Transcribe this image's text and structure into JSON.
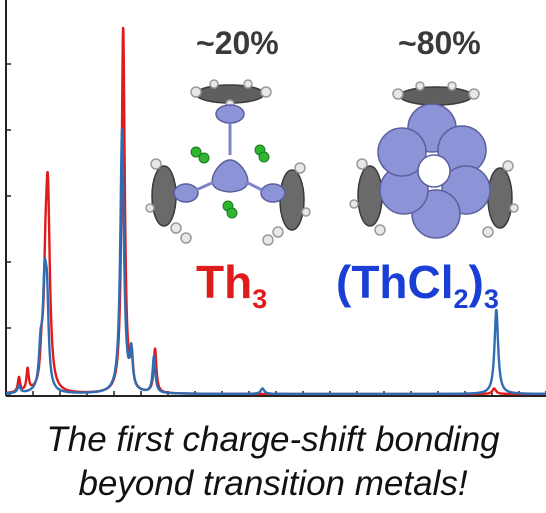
{
  "colors": {
    "red": "#e01b1b",
    "blue": "#2f6db3",
    "axis": "#222222",
    "blob": "#8c93d6"
  },
  "icons": [
    "phenyl-ring-icon",
    "green-chlorine-icon",
    "thorium-molecule-icon"
  ],
  "annotations": {
    "pct_left": "~20%",
    "pct_right": "~80%",
    "label_left_main": "Th",
    "label_left_sub": "3",
    "label_right_open": "(ThCl",
    "label_right_sub2": "2",
    "label_right_close": ")",
    "label_right_sub3": "3"
  },
  "caption": {
    "line1": "The first charge-shift bonding",
    "line2": "beyond transition metals!"
  },
  "chart_data": {
    "type": "line",
    "title": "",
    "xlabel": "",
    "ylabel": "",
    "grid": false,
    "xlim": [
      0,
      100
    ],
    "ylim": [
      0,
      100
    ],
    "series": [
      {
        "name": "Th3",
        "color": "#e01b1b",
        "peaks": [
          {
            "x": 2.4,
            "height": 4,
            "width": 0.25
          },
          {
            "x": 4.0,
            "height": 6,
            "width": 0.25
          },
          {
            "x": 6.6,
            "height": 8,
            "width": 0.3
          },
          {
            "x": 7.3,
            "height": 20,
            "width": 0.35
          },
          {
            "x": 7.75,
            "height": 52,
            "width": 0.45
          },
          {
            "x": 21.7,
            "height": 100,
            "width": 0.35
          },
          {
            "x": 23.3,
            "height": 8,
            "width": 0.25
          },
          {
            "x": 27.6,
            "height": 12,
            "width": 0.3
          },
          {
            "x": 90.4,
            "height": 1.5,
            "width": 0.4
          }
        ]
      },
      {
        "name": "(ThCl2)3",
        "color": "#2f6db3",
        "peaks": [
          {
            "x": 2.4,
            "height": 2,
            "width": 0.3
          },
          {
            "x": 6.4,
            "height": 10,
            "width": 0.35
          },
          {
            "x": 7.15,
            "height": 27,
            "width": 0.4
          },
          {
            "x": 7.6,
            "height": 20,
            "width": 0.35
          },
          {
            "x": 21.5,
            "height": 72,
            "width": 0.4
          },
          {
            "x": 23.2,
            "height": 10,
            "width": 0.3
          },
          {
            "x": 27.4,
            "height": 10,
            "width": 0.3
          },
          {
            "x": 47.5,
            "height": 1.5,
            "width": 0.4
          },
          {
            "x": 90.8,
            "height": 23,
            "width": 0.4
          }
        ]
      }
    ]
  }
}
